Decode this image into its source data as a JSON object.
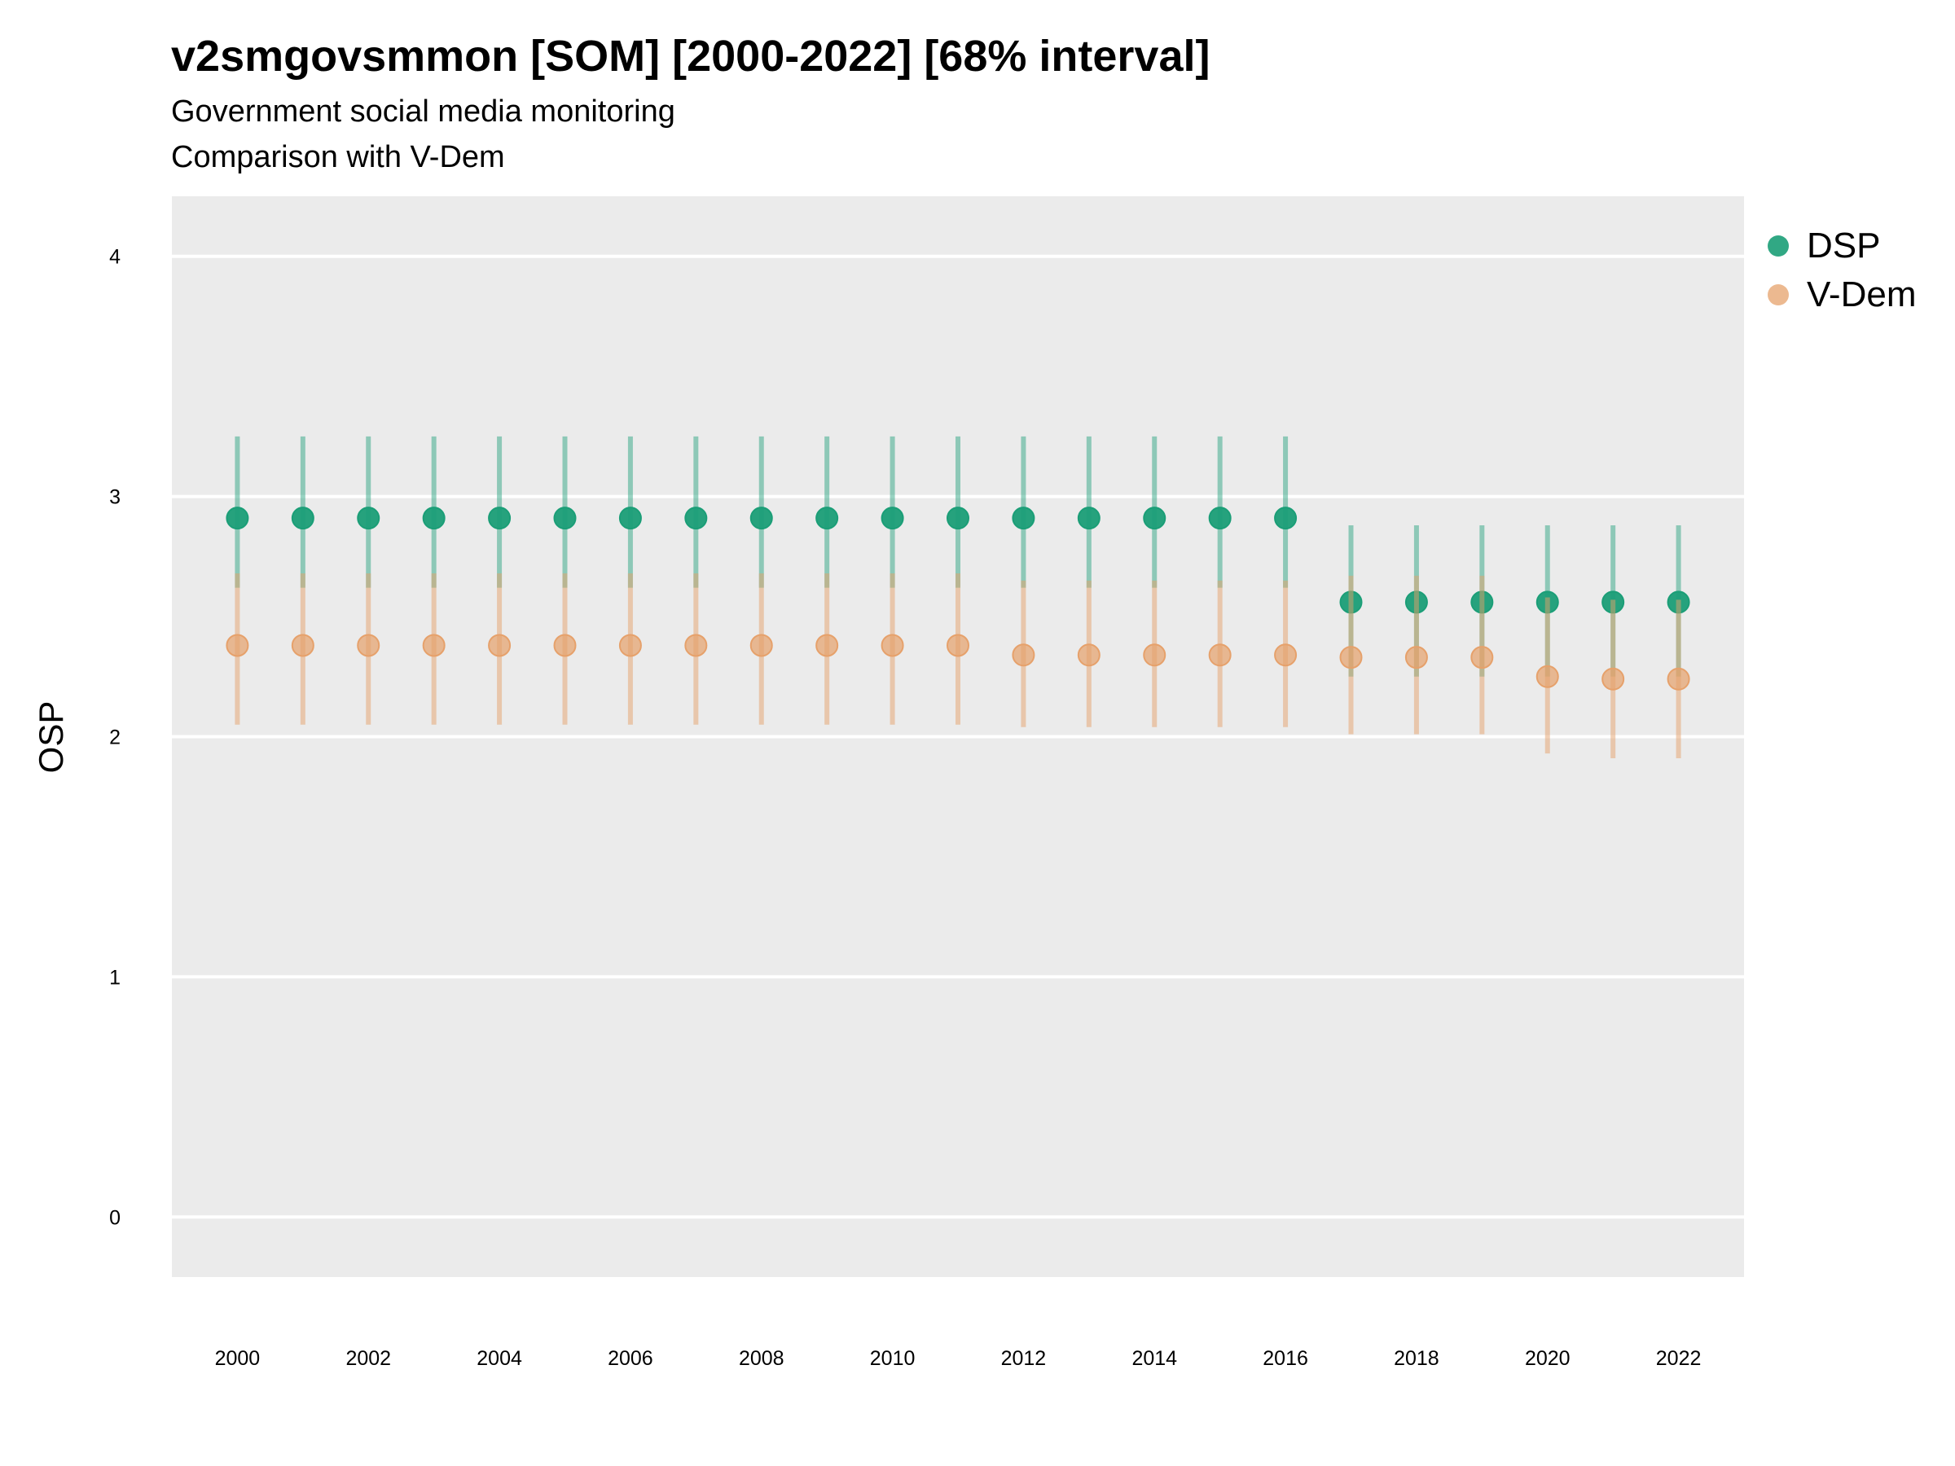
{
  "chart_data": {
    "type": "scatter",
    "title": "v2smgovsmmon [SOM] [2000-2022] [68% interval]",
    "subtitle": "Government social media monitoring",
    "subtitle2": "Comparison with V-Dem",
    "xlabel": "",
    "ylabel": "OSP",
    "ylim": [
      -0.25,
      4.25
    ],
    "xlim": [
      1999,
      2023
    ],
    "y_ticks": [
      0,
      1,
      2,
      3,
      4
    ],
    "x_ticks": [
      2000,
      2002,
      2004,
      2006,
      2008,
      2010,
      2012,
      2014,
      2016,
      2018,
      2020,
      2022
    ],
    "x": [
      2000,
      2001,
      2002,
      2003,
      2004,
      2005,
      2006,
      2007,
      2008,
      2009,
      2010,
      2011,
      2012,
      2013,
      2014,
      2015,
      2016,
      2017,
      2018,
      2019,
      2020,
      2021,
      2022
    ],
    "grid": true,
    "legend_position": "right",
    "series": [
      {
        "name": "DSP",
        "color": "#1b9e77",
        "values": [
          2.91,
          2.91,
          2.91,
          2.91,
          2.91,
          2.91,
          2.91,
          2.91,
          2.91,
          2.91,
          2.91,
          2.91,
          2.91,
          2.91,
          2.91,
          2.91,
          2.91,
          2.56,
          2.56,
          2.56,
          2.56,
          2.56,
          2.56
        ],
        "lower": [
          2.62,
          2.62,
          2.62,
          2.62,
          2.62,
          2.62,
          2.62,
          2.62,
          2.62,
          2.62,
          2.62,
          2.62,
          2.62,
          2.62,
          2.62,
          2.62,
          2.62,
          2.25,
          2.25,
          2.25,
          2.25,
          2.25,
          2.25
        ],
        "upper": [
          3.25,
          3.25,
          3.25,
          3.25,
          3.25,
          3.25,
          3.25,
          3.25,
          3.25,
          3.25,
          3.25,
          3.25,
          3.25,
          3.25,
          3.25,
          3.25,
          3.25,
          2.88,
          2.88,
          2.88,
          2.88,
          2.88,
          2.88
        ]
      },
      {
        "name": "V-Dem",
        "color": "#e6a16b",
        "values": [
          2.38,
          2.38,
          2.38,
          2.38,
          2.38,
          2.38,
          2.38,
          2.38,
          2.38,
          2.38,
          2.38,
          2.38,
          2.34,
          2.34,
          2.34,
          2.34,
          2.34,
          2.33,
          2.33,
          2.33,
          2.25,
          2.24,
          2.24
        ],
        "lower": [
          2.05,
          2.05,
          2.05,
          2.05,
          2.05,
          2.05,
          2.05,
          2.05,
          2.05,
          2.05,
          2.05,
          2.05,
          2.04,
          2.04,
          2.04,
          2.04,
          2.04,
          2.01,
          2.01,
          2.01,
          1.93,
          1.91,
          1.91
        ],
        "upper": [
          2.68,
          2.68,
          2.68,
          2.68,
          2.68,
          2.68,
          2.68,
          2.68,
          2.68,
          2.68,
          2.68,
          2.68,
          2.65,
          2.65,
          2.65,
          2.65,
          2.65,
          2.67,
          2.67,
          2.67,
          2.58,
          2.57,
          2.57
        ]
      }
    ]
  }
}
